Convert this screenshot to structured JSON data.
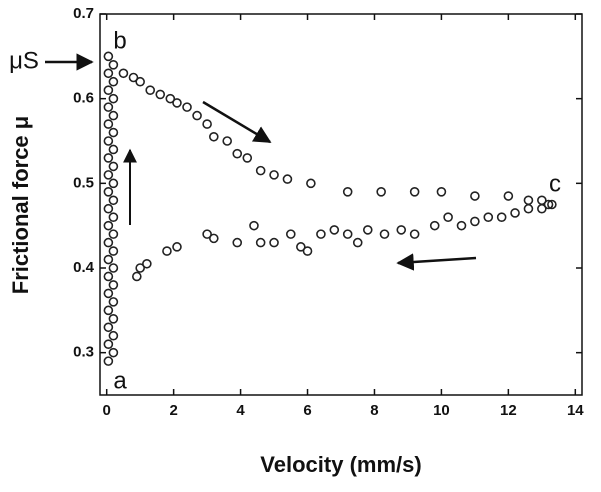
{
  "chart_data": {
    "type": "scatter",
    "xlabel": "Velocity (mm/s)",
    "ylabel": "Frictional force μ",
    "color": "#222222",
    "xlim": [
      -0.2,
      14.2
    ],
    "ylim": [
      0.25,
      0.7
    ],
    "xticks": [
      0,
      2,
      4,
      6,
      8,
      10,
      12,
      14
    ],
    "yticks": [
      0.3,
      0.4,
      0.5,
      0.6,
      0.7
    ],
    "annotations": [
      "μS",
      "a",
      "b",
      "c"
    ],
    "x": [
      0.05,
      0.2,
      0.05,
      0.2,
      0.05,
      0.2,
      0.05,
      0.2,
      0.05,
      0.2,
      0.05,
      0.2,
      0.05,
      0.2,
      0.05,
      0.2,
      0.05,
      0.2,
      0.05,
      0.2,
      0.05,
      0.2,
      0.05,
      0.2,
      0.05,
      0.2,
      0.05,
      0.2,
      0.05,
      0.2,
      0.05,
      0.2,
      0.05,
      0.2,
      0.05,
      0.2,
      0.05,
      0.5,
      0.8,
      1.0,
      1.3,
      1.6,
      1.9,
      2.1,
      2.4,
      2.7,
      3.0,
      3.2,
      3.6,
      3.9,
      4.2,
      4.6,
      5.0,
      5.4,
      6.1,
      7.2,
      8.2,
      9.2,
      10.0,
      11.0,
      12.0,
      12.6,
      13.0,
      13.2,
      0.9,
      1.0,
      1.2,
      1.8,
      2.1,
      3.0,
      3.2,
      3.9,
      4.4,
      4.6,
      5.0,
      5.5,
      5.8,
      6.0,
      6.4,
      6.8,
      7.2,
      7.5,
      7.8,
      8.3,
      8.8,
      9.2,
      9.8,
      10.2,
      10.6,
      11.0,
      11.4,
      11.8,
      12.2,
      12.6,
      13.0,
      13.3
    ],
    "values": [
      0.29,
      0.3,
      0.31,
      0.32,
      0.33,
      0.34,
      0.35,
      0.36,
      0.37,
      0.38,
      0.39,
      0.4,
      0.41,
      0.42,
      0.43,
      0.44,
      0.45,
      0.46,
      0.47,
      0.48,
      0.49,
      0.5,
      0.51,
      0.52,
      0.53,
      0.54,
      0.55,
      0.56,
      0.57,
      0.58,
      0.59,
      0.6,
      0.61,
      0.62,
      0.63,
      0.64,
      0.65,
      0.63,
      0.625,
      0.62,
      0.61,
      0.605,
      0.6,
      0.595,
      0.59,
      0.58,
      0.57,
      0.555,
      0.55,
      0.535,
      0.53,
      0.515,
      0.51,
      0.505,
      0.5,
      0.49,
      0.49,
      0.49,
      0.49,
      0.485,
      0.485,
      0.48,
      0.48,
      0.475,
      0.39,
      0.4,
      0.405,
      0.42,
      0.425,
      0.44,
      0.435,
      0.43,
      0.45,
      0.43,
      0.43,
      0.44,
      0.425,
      0.42,
      0.44,
      0.445,
      0.44,
      0.43,
      0.445,
      0.44,
      0.445,
      0.44,
      0.45,
      0.46,
      0.45,
      0.455,
      0.46,
      0.46,
      0.465,
      0.47,
      0.47,
      0.475
    ]
  }
}
